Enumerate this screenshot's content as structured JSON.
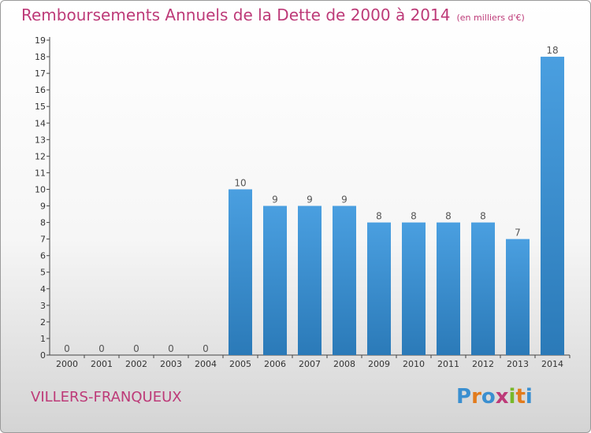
{
  "title": "Remboursements Annuels de la Dette de 2000 à 2014",
  "unit_note": "(en milliers d'€)",
  "commune": "VILLERS-FRANQUEUX",
  "logo": {
    "text": "Proxiti",
    "letters": [
      "P",
      "r",
      "o",
      "x",
      "i",
      "t",
      "i"
    ],
    "colors": [
      "#3a8fd0",
      "#e27b1c",
      "#3a8fd0",
      "#bd3a78",
      "#78b829",
      "#e27b1c",
      "#3a8fd0"
    ]
  },
  "colors": {
    "bar": "#4a9fe0",
    "bar_dark": "#2b7ab8",
    "title": "#bd3a78",
    "axis": "#444444",
    "grid": "#cccccc"
  },
  "chart_data": {
    "type": "bar",
    "categories": [
      "2000",
      "2001",
      "2002",
      "2003",
      "2004",
      "2005",
      "2006",
      "2007",
      "2008",
      "2009",
      "2010",
      "2011",
      "2012",
      "2013",
      "2014"
    ],
    "values": [
      0,
      0,
      0,
      0,
      0,
      10,
      9,
      9,
      9,
      8,
      8,
      8,
      8,
      7,
      18
    ],
    "data_labels": [
      "0",
      "0",
      "0",
      "0",
      "0",
      "10",
      "9",
      "9",
      "9",
      "8",
      "8",
      "8",
      "8",
      "7",
      "18"
    ],
    "yticks": [
      "0",
      "1",
      "2",
      "3",
      "4",
      "5",
      "6",
      "7",
      "8",
      "9",
      "10",
      "11",
      "12",
      "13",
      "14",
      "15",
      "16",
      "17",
      "18",
      "19"
    ],
    "ylim": [
      0,
      19
    ],
    "xlabel": "",
    "ylabel": "",
    "grid": false
  }
}
